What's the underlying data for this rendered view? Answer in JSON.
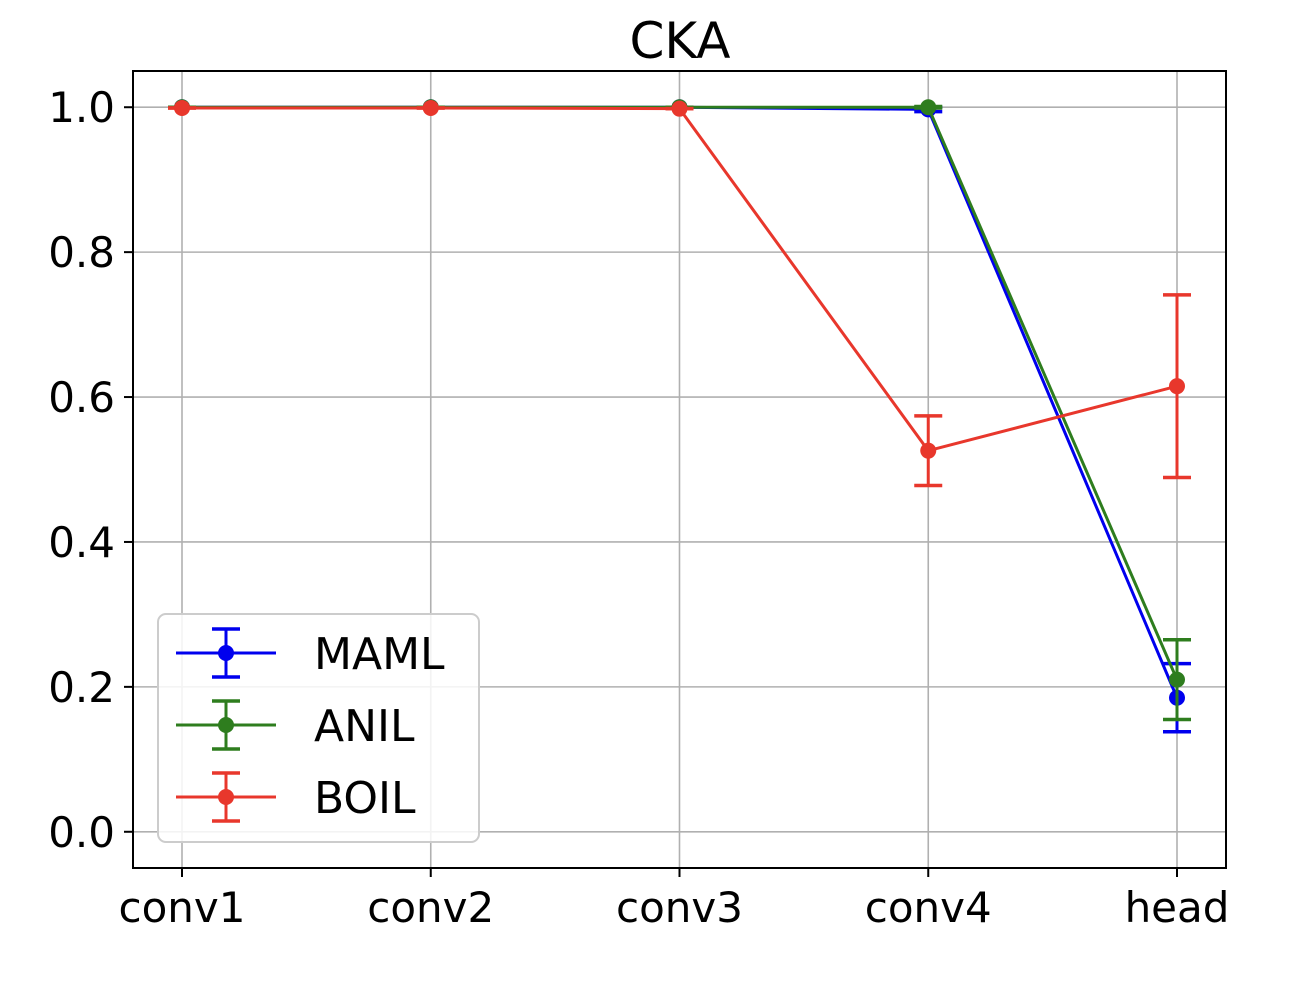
{
  "chart_data": {
    "type": "line",
    "title": "CKA",
    "xlabel": "",
    "ylabel": "",
    "categories": [
      "conv1",
      "conv2",
      "conv3",
      "conv4",
      "head"
    ],
    "ylim": [
      -0.05,
      1.05
    ],
    "yticks": [
      "0.0",
      "0.2",
      "0.4",
      "0.6",
      "0.8",
      "1.0"
    ],
    "grid": true,
    "legend_position": "lower-left",
    "error_bars": true,
    "series": [
      {
        "name": "MAML",
        "color": "#0000ee",
        "values": [
          1.0,
          1.0,
          1.0,
          0.997,
          0.185
        ],
        "err": [
          0.0,
          0.0,
          0.0,
          0.003,
          0.047
        ]
      },
      {
        "name": "ANIL",
        "color": "#2e7d1e",
        "values": [
          1.0,
          1.0,
          1.0,
          1.0,
          0.21
        ],
        "err": [
          0.0,
          0.0,
          0.0,
          0.001,
          0.055
        ]
      },
      {
        "name": "BOIL",
        "color": "#e8372c",
        "values": [
          0.999,
          0.999,
          0.998,
          0.526,
          0.615
        ],
        "err": [
          0.0,
          0.0,
          0.0,
          0.048,
          0.126
        ]
      }
    ]
  }
}
